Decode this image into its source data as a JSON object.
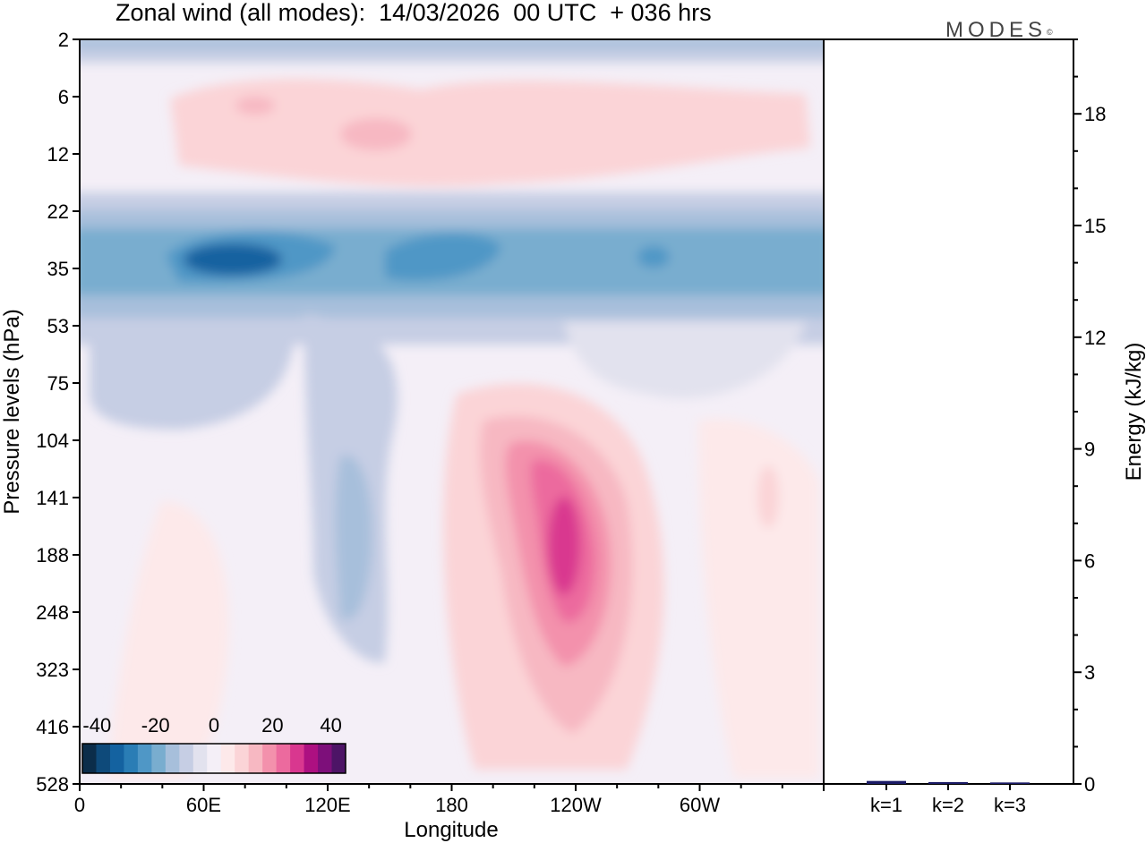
{
  "title": "Zonal wind (all modes):  14/03/2026  00 UTC  + 036 hrs",
  "brand": {
    "name": "MODES",
    "mark": "©"
  },
  "chart_data": [
    {
      "type": "heatmap",
      "title": "Zonal wind (all modes):  14/03/2026  00 UTC  + 036 hrs",
      "xlabel": "Longitude",
      "ylabel": "Pressure levels (hPa)",
      "x_ticks": [
        "0",
        "60E",
        "120E",
        "180",
        "120W",
        "60W"
      ],
      "y_ticks": [
        "2",
        "6",
        "12",
        "22",
        "35",
        "53",
        "75",
        "104",
        "141",
        "188",
        "248",
        "323",
        "416",
        "528"
      ],
      "colorbar": {
        "ticks": [
          "-40",
          "-20",
          "0",
          "20",
          "40"
        ],
        "range": [
          -45,
          45
        ],
        "levels": [
          -45,
          -40,
          -35,
          -30,
          -25,
          -20,
          -15,
          -10,
          -5,
          0,
          5,
          10,
          15,
          20,
          25,
          30,
          35,
          40,
          45
        ],
        "colors": [
          "#0b2d4a",
          "#0e4a7a",
          "#1462a0",
          "#2a7db5",
          "#4f97c6",
          "#79adcf",
          "#a7bfdb",
          "#c6cee4",
          "#e2e2ee",
          "#f4eff7",
          "#fde9ea",
          "#fbd4d7",
          "#f7b8c2",
          "#f391ac",
          "#ec6a9e",
          "#d9378f",
          "#ad1081",
          "#7d0f7a",
          "#4d1466"
        ]
      },
      "features": [
        {
          "name": "easterly jet ~30 hPa",
          "min_value": -35
        },
        {
          "name": "westerly core ~188 hPa near 120W",
          "max_value": 35
        },
        {
          "name": "stratospheric westerly band 6-12 hPa",
          "max_value": 10
        }
      ]
    },
    {
      "type": "bar",
      "ylabel": "Energy (kJ/kg)",
      "categories": [
        "k=1",
        "k=2",
        "k=3"
      ],
      "values": [
        0.08,
        0.05,
        0.04
      ],
      "ylim": [
        0,
        20
      ],
      "y_ticks": [
        "0",
        "3",
        "6",
        "9",
        "12",
        "15",
        "18"
      ],
      "y_tick_values": [
        0,
        3,
        6,
        9,
        12,
        15,
        18
      ],
      "bar_color": "#1a1a66"
    }
  ]
}
